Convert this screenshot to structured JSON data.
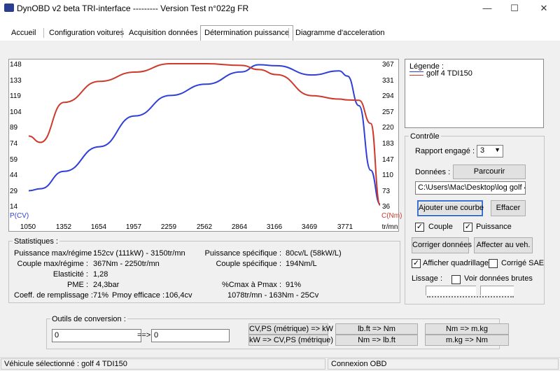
{
  "window": {
    "title": "DynOBD v2 beta TRI-interface --------- Version Test n°022g FR"
  },
  "tabs": [
    "Accueil",
    "Configuration voitures",
    "Acquisition données",
    "Détermination puissance",
    "Diagramme d'acceleration"
  ],
  "chart_data": {
    "type": "line",
    "x": [
      1050,
      1150,
      1352,
      1654,
      1957,
      2259,
      2562,
      2864,
      3015,
      3166,
      3469,
      3700,
      3771,
      3870,
      3970,
      4050
    ],
    "x_ticks": [
      "1050",
      "1352",
      "1654",
      "1957",
      "2259",
      "2562",
      "2864",
      "3166",
      "3469",
      "3771",
      "tr/mn"
    ],
    "y_left_ticks": [
      "148",
      "133",
      "119",
      "104",
      "89",
      "74",
      "59",
      "44",
      "29",
      "14"
    ],
    "y_left_label": "P(CV)",
    "y_right_ticks": [
      "367",
      "331",
      "294",
      "257",
      "220",
      "183",
      "147",
      "110",
      "73",
      "36"
    ],
    "y_right_label": "C(Nm)",
    "xlim": [
      1050,
      4050
    ],
    "ylim_left": [
      14,
      152
    ],
    "ylim_right": [
      36,
      372
    ],
    "series": [
      {
        "axis": "left",
        "color": "#2f3fd8",
        "values": [
          28,
          30,
          47,
          71,
          101,
          121,
          132,
          144,
          151,
          150,
          141,
          145,
          140,
          111,
          48,
          15
        ]
      },
      {
        "axis": "right",
        "color": "#cd3a2c",
        "values": [
          200,
          185,
          280,
          330,
          352,
          372,
          372,
          368,
          358,
          346,
          296,
          288,
          286,
          285,
          230,
          36
        ]
      }
    ]
  },
  "legend": {
    "title": "Légende :",
    "items": [
      {
        "label": "golf 4 TDI150",
        "color": "#2f3fd8",
        "color2": "#cd3a2c"
      }
    ]
  },
  "controle": {
    "title": "Contrôle",
    "rapport_label": "Rapport engagé :",
    "rapport_value": "3",
    "donnees_label": "Données :",
    "parcourir": "Parcourir",
    "path": "C:\\Users\\Mac\\Desktop\\log golf 4",
    "ajouter_courbe": "Ajouter une courbe",
    "effacer": "Effacer",
    "couple": "Couple",
    "puissance": "Puissance",
    "couple_checked": "✓",
    "puissance_checked": "✓",
    "corriger": "Corriger données",
    "affecter": "Affecter au veh.",
    "afficher_quadrillage": "Afficher quadrillage",
    "quadrillage_checked": "✓",
    "corrige_sae": "Corrigé SAE",
    "lissage": "Lissage :",
    "voir_brutes": "Voir données brutes"
  },
  "stats": {
    "title": "Statistiques :",
    "puissance_max_label": "Puissance max/régime :",
    "puissance_max": "152cv (111kW) - 3150tr/mn",
    "couple_max_label": "Couple max/régime :",
    "couple_max": "367Nm - 2250tr/mn",
    "elasticite_label": "Elasticité :",
    "elasticite": "1,28",
    "pme_label": "PME :",
    "pme": "24,3bar",
    "remplissage_label": "Coeff. de remplissage :",
    "remplissage": "71%",
    "pmoy_label": "Pmoy efficace :",
    "pmoy": "106,4cv",
    "puissance_spec_label": "Puissance spécifique :",
    "puissance_spec": "80cv/L (58kW/L)",
    "couple_spec_label": "Couple spécifique :",
    "couple_spec": "194Nm/L",
    "cmax_label": "%Cmax à Pmax :",
    "cmax": "91%",
    "bottom_line": "1078tr/mn - 163Nm - 25Cv"
  },
  "outils": {
    "title": "Outils de conversion :",
    "input1": "0",
    "arrow": "==>",
    "input2": "0",
    "btn_cv_kw": "CV,PS (métrique) => kW",
    "btn_kw_cv": "kW => CV,PS (métrique)",
    "btn_lbft_nm": "lb.ft => Nm",
    "btn_nm_lbft": "Nm => lb.ft",
    "btn_nm_mkg": "Nm => m.kg",
    "btn_mkg_nm": "m.kg => Nm"
  },
  "status": {
    "vehicule": "Véhicule sélectionné : golf 4 TDI150",
    "connexion": "Connexion OBD"
  }
}
